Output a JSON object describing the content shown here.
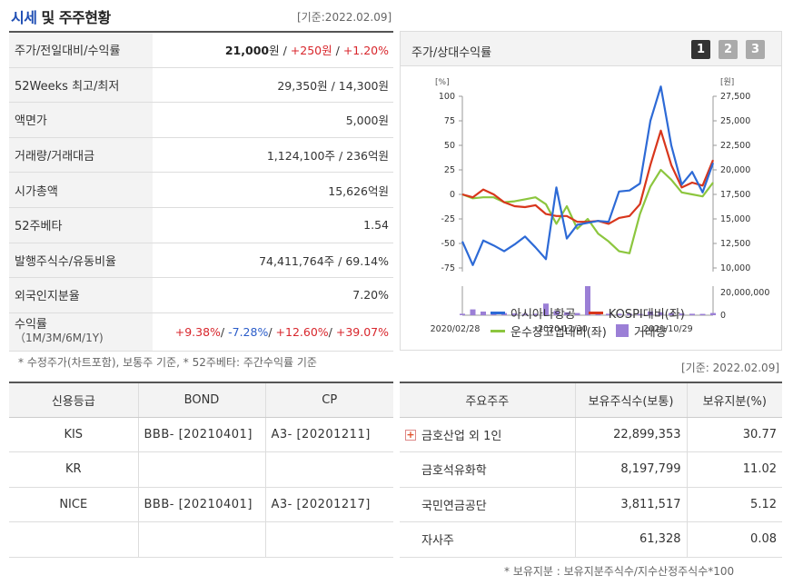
{
  "header": {
    "title_a": "시세",
    "title_b": " 및 주주현황",
    "date": "[기준:2022.02.09]"
  },
  "summary": [
    {
      "key": "주가/전일대비/수익률",
      "price": "21,000",
      "price_unit": "원",
      "sep1": " / ",
      "change": "+250원",
      "sep2": " / ",
      "rate": "+1.20%"
    },
    {
      "key": "52Weeks 최고/최저",
      "value": "29,350원 / 14,300원"
    },
    {
      "key": "액면가",
      "value": "5,000원"
    },
    {
      "key": "거래량/거래대금",
      "value": "1,124,100주 / 236억원"
    },
    {
      "key": "시가총액",
      "value": "15,626억원"
    },
    {
      "key": "52주베타",
      "value": "1.54"
    },
    {
      "key": "발행주식수/유동비율",
      "value": "74,411,764주 / 69.14%"
    },
    {
      "key": "외국인지분율",
      "value": "7.20%"
    },
    {
      "key": "수익률",
      "sub": "（1M/3M/6M/1Y)",
      "r1": "+9.38%",
      "r2": "-7.28%",
      "r3": "+12.60%",
      "r4": "+39.07%",
      "sep": "/ "
    }
  ],
  "note_left": "* 수정주가(차트포함), 보통주 기준, * 52주베타: 주간수익률 기준",
  "chart": {
    "title": "주가/상대수익률",
    "pages": [
      "1",
      "2",
      "3"
    ],
    "left_unit": "[%]",
    "right_unit": "[원]",
    "legend": [
      "아시아나항공",
      "KOSPI대비(좌)",
      "운수창고업대비(좌)",
      "거래량"
    ]
  },
  "chart_data": {
    "type": "line",
    "x_ticks": [
      "2020/02/28",
      "2020/12/30",
      "2021/10/29"
    ],
    "y_left_ticks": [
      "100",
      "75",
      "50",
      "25",
      "0",
      "-25",
      "-50",
      "-75"
    ],
    "y_left_lim": [
      -75,
      100
    ],
    "y_right_ticks": [
      "27,500",
      "25,000",
      "22,500",
      "20,000",
      "17,500",
      "15,000",
      "12,500",
      "10,000"
    ],
    "y_right_lim": [
      10000,
      27500
    ],
    "volume_ticks": [
      "20,000,000",
      "0"
    ],
    "volume_lim": [
      0,
      20000000
    ],
    "colors": {
      "stock": "#2d6ad6",
      "kospi": "#d8361c",
      "transport": "#8cc63e",
      "volume": "#9b7fd6"
    },
    "series": [
      {
        "name": "아시아나항공",
        "axis": "right",
        "values": [
          12700,
          10300,
          12800,
          12300,
          11700,
          12400,
          13200,
          12100,
          10900,
          18200,
          13000,
          14400,
          14600,
          14800,
          14700,
          17800,
          17900,
          18600,
          25000,
          28500,
          22500,
          18500,
          19800,
          17700,
          20700
        ]
      },
      {
        "name": "KOSPI대비(좌)",
        "axis": "left",
        "values": [
          0,
          -3,
          5,
          0,
          -8,
          -12,
          -13,
          -11,
          -20,
          -22,
          -22,
          -28,
          -28,
          -27,
          -30,
          -24,
          -22,
          -10,
          30,
          65,
          30,
          7,
          12,
          9,
          35
        ]
      },
      {
        "name": "운수창고업대비(좌)",
        "axis": "left",
        "values": [
          0,
          -4,
          -3,
          -3,
          -8,
          -7,
          -5,
          -3,
          -10,
          -30,
          -12,
          -35,
          -25,
          -40,
          -48,
          -58,
          -60,
          -20,
          8,
          25,
          15,
          2,
          0,
          -2,
          12
        ]
      },
      {
        "name": "거래량",
        "axis": "volume",
        "type": "bar",
        "values": [
          1000000,
          4000000,
          2500000,
          2000000,
          1500000,
          1200000,
          1000000,
          1000000,
          8000000,
          3000000,
          2000000,
          1500000,
          20000000,
          1500000,
          1000000,
          1000000,
          1000000,
          900000,
          2500000,
          2000000,
          1500000,
          1200000,
          1000000,
          900000,
          1500000
        ]
      }
    ]
  },
  "date_right": "[기준: 2022.02.09]",
  "credit": {
    "headers": [
      "신용등급",
      "BOND",
      "CP"
    ],
    "rows": [
      [
        "KIS",
        "BBB-  [20210401]",
        "A3-  [20201211]"
      ],
      [
        "KR",
        "",
        ""
      ],
      [
        "NICE",
        "BBB-  [20210401]",
        "A3-  [20201217]"
      ],
      [
        "",
        "",
        ""
      ]
    ]
  },
  "holders": {
    "headers": [
      "주요주주",
      "보유주식수(보통)",
      "보유지분(%)"
    ],
    "rows": [
      {
        "name": "금호산업 외 1인",
        "shares": "22,899,353",
        "pct": "30.77",
        "expand": true
      },
      {
        "name": "금호석유화학",
        "shares": "8,197,799",
        "pct": "11.02"
      },
      {
        "name": "국민연금공단",
        "shares": "3,811,517",
        "pct": "5.12"
      },
      {
        "name": "자사주",
        "shares": "61,328",
        "pct": "0.08"
      }
    ]
  },
  "note_right": "* 보유지분 : 보유지분주식수/지수산정주식수*100"
}
